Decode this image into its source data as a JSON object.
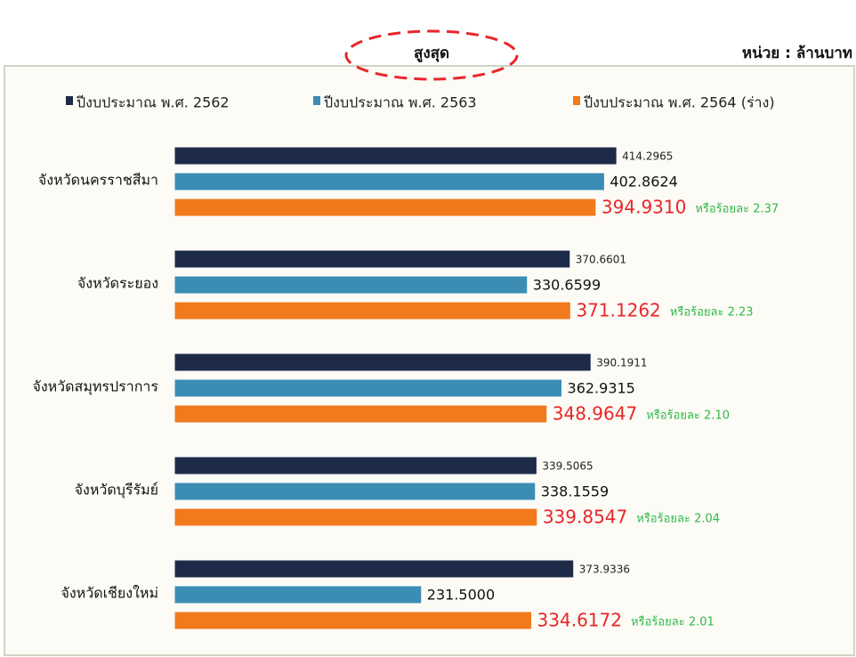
{
  "chart_data": {
    "type": "hbar",
    "highlight": "สูงสุด",
    "unit": "หน่วย : ล้านบาท",
    "categories": [
      "จังหวัดนครราชสีมา",
      "จังหวัดระยอง",
      "จังหวัดสมุทรปราการ",
      "จังหวัดบุรีรัมย์",
      "จังหวัดเชียงใหม่"
    ],
    "series": [
      {
        "name": "ปีงบประมาณ พ.ศ. 2562",
        "color": "#1e2b48",
        "values": [
          414.2965,
          370.6601,
          390.1911,
          339.5065,
          373.9336
        ],
        "value_labels": [
          "414.2965",
          "370.6601",
          "390.1911",
          "339.5065",
          "373.9336"
        ]
      },
      {
        "name": "ปีงบประมาณ พ.ศ. 2563",
        "color": "#3b8db4",
        "values": [
          402.8624,
          330.6599,
          362.9315,
          338.1559,
          231.5
        ],
        "value_labels": [
          "402.8624",
          "330.6599",
          "362.9315",
          "338.1559",
          "231.5000"
        ]
      },
      {
        "name": "ปีงบประมาณ พ.ศ. 2564 (ร่าง)",
        "color": "#f07a1c",
        "values": [
          394.931,
          371.1262,
          348.9647,
          339.8547,
          334.6172
        ],
        "value_labels": [
          "394.9310",
          "371.1262",
          "348.9647",
          "339.8547",
          "334.6172"
        ],
        "annotations": [
          "หรือร้อยละ 2.37",
          "หรือร้อยละ 2.23",
          "หรือร้อยละ 2.10",
          "หรือร้อยละ 2.04",
          "หรือร้อยละ 2.01"
        ]
      }
    ],
    "xlim": [
      0,
      600
    ]
  }
}
